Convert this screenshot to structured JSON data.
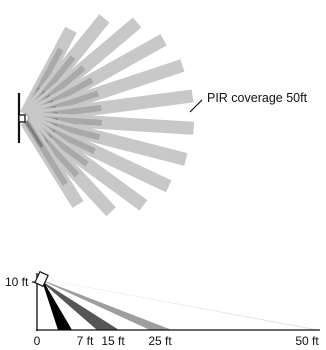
{
  "top_view": {
    "coverage_label": "PIR coverage 50ft",
    "beam_count": 12,
    "colors": {
      "beam_outer": "#c8c8c8",
      "beam_mid": "#a9a9a9",
      "beam_inner": "#7d7d7d",
      "wall": "#111111"
    }
  },
  "side_view": {
    "height_label": "10 ft",
    "distance_labels": [
      "0",
      "7 ft",
      "15 ft",
      "25 ft",
      "50 ft"
    ],
    "colors": {
      "zone_7": "#000000",
      "zone_15": "#555555",
      "zone_25": "#9e9e9e",
      "zone_50": "#dedede",
      "axis": "#111111"
    }
  }
}
